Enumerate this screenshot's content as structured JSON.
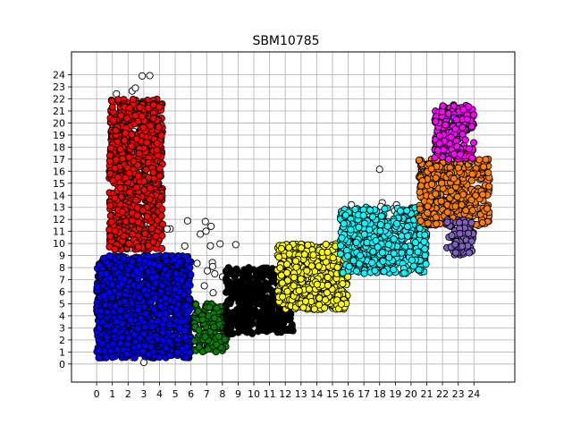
{
  "chart_data": {
    "type": "scatter",
    "title": "SBM10785",
    "xlabel": "",
    "ylabel": "",
    "xlim": [
      -1.6,
      26.6
    ],
    "ylim": [
      -1.5,
      25.9
    ],
    "x_ticks": [
      0,
      1,
      2,
      3,
      4,
      5,
      6,
      7,
      8,
      9,
      10,
      11,
      12,
      13,
      14,
      15,
      16,
      17,
      18,
      19,
      20,
      21,
      22,
      23,
      24
    ],
    "y_ticks": [
      0,
      1,
      2,
      3,
      4,
      5,
      6,
      7,
      8,
      9,
      10,
      11,
      12,
      13,
      14,
      15,
      16,
      17,
      18,
      19,
      20,
      21,
      22,
      23,
      24
    ],
    "grid": true,
    "legend": "none",
    "marker": "circle with black edge",
    "series": [
      {
        "color": "#ffffff",
        "clusters": [
          {
            "x": [
              1,
              4
            ],
            "y": [
              0,
              24
            ],
            "n": 60
          },
          {
            "x": [
              4,
              9
            ],
            "y": [
              5,
              12
            ],
            "n": 30
          },
          {
            "x": [
              9,
              12
            ],
            "y": [
              3,
              7.5
            ],
            "n": 10
          },
          {
            "x": [
              16,
              21
            ],
            "y": [
              11,
              16.5
            ],
            "n": 10
          }
        ]
      },
      {
        "color": "#ff0000",
        "clusters": [
          {
            "x": [
              0.8,
              4.2
            ],
            "y": [
              9.5,
              22
            ],
            "n": 900
          }
        ]
      },
      {
        "color": "#0000ff",
        "clusters": [
          {
            "x": [
              0,
              6
            ],
            "y": [
              0.5,
              9
            ],
            "n": 1400
          }
        ]
      },
      {
        "color": "#008000",
        "clusters": [
          {
            "x": [
              6.2,
              8.3
            ],
            "y": [
              1,
              5
            ],
            "n": 150
          }
        ]
      },
      {
        "color": "#000000",
        "clusters": [
          {
            "x": [
              8.2,
              12.5
            ],
            "y": [
              2.5,
              8
            ],
            "n": 400
          }
        ]
      },
      {
        "color": "#ffff00",
        "clusters": [
          {
            "x": [
              11.5,
              16
            ],
            "y": [
              4.5,
              10
            ],
            "n": 500
          }
        ]
      },
      {
        "color": "#00ffff",
        "clusters": [
          {
            "x": [
              15.5,
              21
            ],
            "y": [
              7.5,
              13
            ],
            "n": 500
          }
        ]
      },
      {
        "color": "#ff8000",
        "clusters": [
          {
            "x": [
              20.5,
              25
            ],
            "y": [
              11.5,
              17
            ],
            "n": 450
          }
        ]
      },
      {
        "color": "#ff00ff",
        "clusters": [
          {
            "x": [
              21.5,
              24
            ],
            "y": [
              17,
              21.5
            ],
            "n": 200
          }
        ]
      },
      {
        "color": "#8060c0",
        "clusters": [
          {
            "x": [
              22.2,
              24
            ],
            "y": [
              9,
              12
            ],
            "n": 80
          }
        ]
      }
    ]
  }
}
